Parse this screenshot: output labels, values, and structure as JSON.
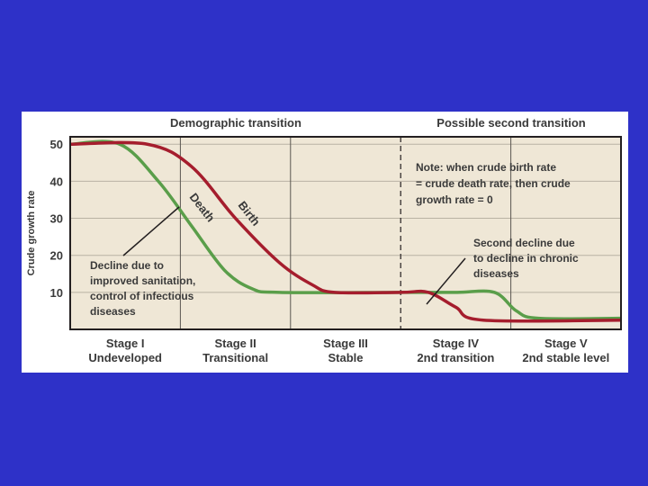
{
  "chart_data": {
    "type": "line",
    "header_left": "Demographic transition",
    "header_right": "Possible second transition",
    "ylabel": "Crude growth rate",
    "yticks": [
      10,
      20,
      30,
      40,
      50
    ],
    "ylim": [
      0,
      52
    ],
    "stages": [
      {
        "name": "Stage I",
        "desc": "Undeveloped"
      },
      {
        "name": "Stage II",
        "desc": "Transitional"
      },
      {
        "name": "Stage III",
        "desc": "Stable"
      },
      {
        "name": "Stage IV",
        "desc": "2nd transition"
      },
      {
        "name": "Stage V",
        "desc": "2nd stable level"
      }
    ],
    "series": [
      {
        "name": "Birth",
        "color": "#a51d2d",
        "points": [
          [
            0,
            50
          ],
          [
            0.7,
            50
          ],
          [
            1.1,
            44
          ],
          [
            1.5,
            30
          ],
          [
            1.9,
            18
          ],
          [
            2.2,
            12
          ],
          [
            2.4,
            10
          ],
          [
            3,
            10
          ],
          [
            3.25,
            10
          ],
          [
            3.5,
            6
          ],
          [
            3.75,
            2.5
          ],
          [
            5,
            2.5
          ]
        ]
      },
      {
        "name": "Death",
        "color": "#5a9e4a",
        "points": [
          [
            0,
            50
          ],
          [
            0.45,
            50
          ],
          [
            0.8,
            40
          ],
          [
            1.1,
            28
          ],
          [
            1.4,
            16
          ],
          [
            1.65,
            11
          ],
          [
            1.9,
            10
          ],
          [
            3,
            10
          ],
          [
            3.5,
            10
          ],
          [
            3.85,
            10
          ],
          [
            4.05,
            5
          ],
          [
            4.25,
            3
          ],
          [
            5,
            3
          ]
        ]
      }
    ],
    "annotations": {
      "note": [
        "Note: when crude birth rate",
        "= crude death rate, then crude",
        "growth rate = 0"
      ],
      "first_decline": [
        "Decline due to",
        "improved sanitation,",
        "control of infectious",
        "diseases"
      ],
      "second_decline": [
        "Second decline due",
        "to decline in chronic",
        "diseases"
      ]
    },
    "colors": {
      "background": "#2e31c8",
      "plot_bg": "#efe7d6",
      "frame": "#231f20"
    }
  }
}
